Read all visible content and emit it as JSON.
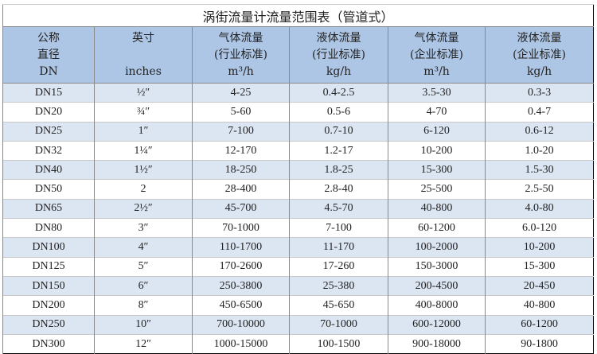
{
  "title": "涡街流量计流量范围表（管道式）",
  "headers": [
    {
      "l1": "公称",
      "l2": "直径",
      "l3": "DN"
    },
    {
      "l1": "英寸",
      "l2": "",
      "l3": "inches"
    },
    {
      "l1": "气体流量",
      "l2": "(行业标准)",
      "l3": "m³/h"
    },
    {
      "l1": "液体流量",
      "l2": "(行业标准)",
      "l3": "kg/h"
    },
    {
      "l1": "气体流量",
      "l2": "(企业标准)",
      "l3": "m³/h"
    },
    {
      "l1": "液体流量",
      "l2": "(企业标准)",
      "l3": "kg/h"
    }
  ],
  "rows": [
    [
      "DN15",
      "½″",
      "4-25",
      "0.4-2.5",
      "3.5-30",
      "0.3-3"
    ],
    [
      "DN20",
      "¾″",
      "5-60",
      "0.5-6",
      "4-70",
      "0.4-7"
    ],
    [
      "DN25",
      "1″",
      "7-100",
      "0.7-10",
      "6-120",
      "0.6-12"
    ],
    [
      "DN32",
      "1¼″",
      "12-170",
      "1.2-17",
      "10-200",
      "1.0-20"
    ],
    [
      "DN40",
      "1½″",
      "18-250",
      "1.8-25",
      "15-300",
      "1.5-30"
    ],
    [
      "DN50",
      "2",
      "28-400",
      "2.8-40",
      "25-500",
      "2.5-50"
    ],
    [
      "DN65",
      "2½″",
      "45-700",
      "4.5-70",
      "40-800",
      "4.0-80"
    ],
    [
      "DN80",
      "3″",
      "70-1000",
      "7-100",
      "60-1200",
      "6.0-120"
    ],
    [
      "DN100",
      "4″",
      "110-1700",
      "11-170",
      "100-2000",
      "10-200"
    ],
    [
      "DN125",
      "5″",
      "170-2600",
      "17-260",
      "150-3000",
      "15-300"
    ],
    [
      "DN150",
      "6″",
      "250-3800",
      "25-380",
      "200-4500",
      "20-450"
    ],
    [
      "DN200",
      "8″",
      "450-6500",
      "45-650",
      "400-8000",
      "40-800"
    ],
    [
      "DN250",
      "10″",
      "700-10000",
      "70-1000",
      "600-12000",
      "60-1200"
    ],
    [
      "DN300",
      "12″",
      "1000-15000",
      "100-1500",
      "900-18000",
      "90-1800"
    ]
  ],
  "colors": {
    "header_bg": "#adc6e5",
    "row_alt_bg": "#dce6f3"
  }
}
